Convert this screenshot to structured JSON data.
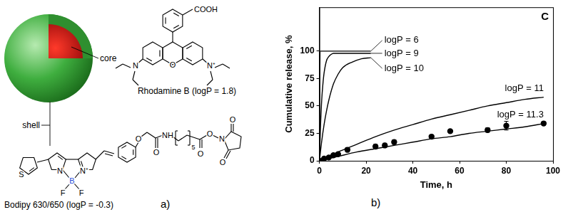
{
  "diagram": {
    "panel_label": "a)",
    "sphere_labels": [
      "core",
      "shell"
    ],
    "molecules": [
      {
        "caption": "Rhodamine B (logP = 1.8)",
        "atoms": [
          "COOH",
          "O",
          "N",
          "N⁺"
        ]
      },
      {
        "caption": "Bodipy 630/650 (logP = -0.3)",
        "atoms": [
          "S",
          "N",
          "B",
          "F",
          "F",
          "N⁺",
          "O",
          "O",
          "NH",
          "5",
          "O",
          "O",
          "N",
          "O",
          "O"
        ]
      }
    ]
  },
  "chart_panel_label": "b)",
  "chart_data": {
    "type": "line",
    "xlabel": "Time, h",
    "ylabel": "Cumulative release, %",
    "xlim": [
      0,
      100
    ],
    "ylim": [
      0,
      140
    ],
    "xticks": [
      0,
      20,
      40,
      60,
      80,
      100
    ],
    "yticks": [
      0,
      25,
      50,
      75,
      100
    ],
    "grid": false,
    "annotations": [
      "C"
    ],
    "series": [
      {
        "name": "logP = 6",
        "type": "line",
        "color": "#000000",
        "x": [
          0,
          0.3,
          22
        ],
        "values": [
          0,
          100,
          100
        ]
      },
      {
        "name": "logP = 9",
        "type": "line",
        "color": "#000000",
        "x": [
          0,
          0.5,
          1,
          1.5,
          2,
          3,
          4,
          5,
          6,
          8,
          22
        ],
        "values": [
          0,
          33,
          56,
          70,
          80,
          91,
          95,
          97,
          98,
          98,
          98
        ]
      },
      {
        "name": "logP = 10",
        "type": "line",
        "color": "#000000",
        "x": [
          0,
          1,
          2,
          3,
          4,
          6,
          8,
          10,
          14,
          18,
          22
        ],
        "values": [
          0,
          18,
          33,
          45,
          55,
          70,
          79,
          85,
          90,
          93,
          94
        ]
      },
      {
        "name": "logP = 11",
        "type": "line",
        "color": "#000000",
        "x": [
          0,
          8,
          16,
          24,
          32,
          40,
          48,
          56,
          64,
          72,
          80,
          88,
          96
        ],
        "values": [
          0,
          8,
          15,
          22,
          28,
          33,
          38,
          42,
          46,
          50,
          53,
          56,
          58
        ]
      },
      {
        "name": "logP = 11.3",
        "type": "line",
        "color": "#000000",
        "x": [
          0,
          8,
          16,
          24,
          32,
          40,
          48,
          56,
          64,
          72,
          80,
          88,
          96
        ],
        "values": [
          0,
          4,
          8,
          11,
          14,
          17,
          20,
          22,
          25,
          27,
          29,
          31,
          34
        ]
      },
      {
        "type": "scatter",
        "marker": "circle",
        "color": "#000000",
        "x": [
          0,
          2,
          4,
          6,
          8,
          12,
          24,
          28,
          32,
          48,
          56,
          72,
          80,
          96
        ],
        "values": [
          0,
          2,
          3,
          5,
          6,
          10,
          13,
          14,
          17,
          22,
          27,
          28,
          32,
          34
        ],
        "errors": [
          0,
          0.5,
          0.5,
          0.8,
          1,
          2,
          2,
          2,
          2,
          1.5,
          1,
          2,
          4,
          1.5
        ]
      }
    ]
  }
}
